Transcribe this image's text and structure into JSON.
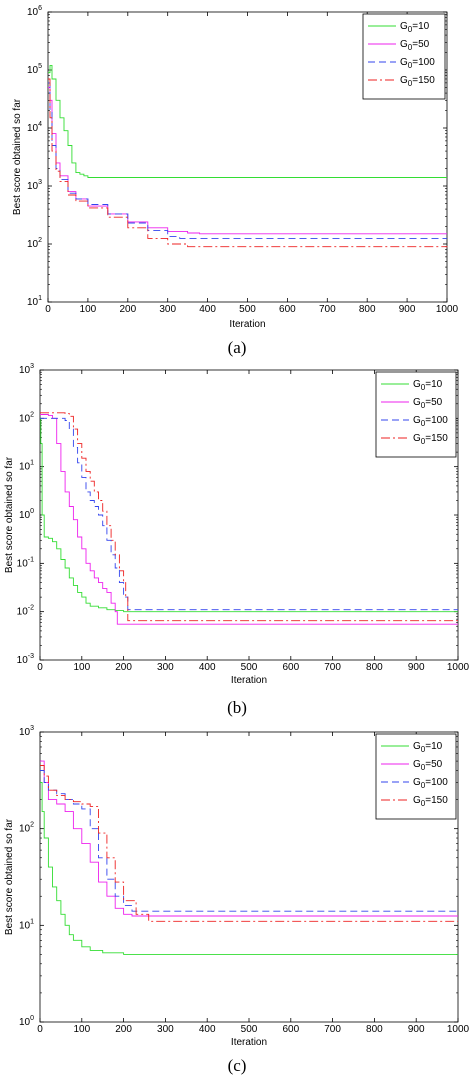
{
  "figure": {
    "captions": [
      "(a)",
      "(b)",
      "(c)"
    ]
  },
  "chart_data": [
    {
      "type": "line",
      "panel": "(a)",
      "xlabel": "Iteration",
      "ylabel": "Best score obtained so far",
      "xlim": [
        0,
        1000
      ],
      "ylim": [
        10,
        1000000
      ],
      "yscale": "log",
      "x_ticks": [
        0,
        100,
        200,
        300,
        400,
        500,
        600,
        700,
        800,
        900,
        1000
      ],
      "y_ticks": [
        {
          "base": "10",
          "exp": "1",
          "v": 10
        },
        {
          "base": "10",
          "exp": "2",
          "v": 100
        },
        {
          "base": "10",
          "exp": "3",
          "v": 1000
        },
        {
          "base": "10",
          "exp": "4",
          "v": 10000
        },
        {
          "base": "10",
          "exp": "5",
          "v": 100000
        },
        {
          "base": "10",
          "exp": "6",
          "v": 1000000
        }
      ],
      "grid": false,
      "legend_position": "top-right",
      "series": [
        {
          "name_main": "G",
          "name_sub": "0",
          "name_rest": "=10",
          "color": "#33dd33",
          "dash": "solid",
          "x": [
            0,
            5,
            10,
            20,
            30,
            40,
            50,
            60,
            70,
            80,
            90,
            100,
            1000
          ],
          "y": [
            90000,
            120000,
            70000,
            30000,
            15000,
            9000,
            5000,
            2500,
            1700,
            1600,
            1500,
            1400,
            1400
          ]
        },
        {
          "name_main": "G",
          "name_sub": "0",
          "name_rest": "=50",
          "color": "#ee22ee",
          "dash": "solid",
          "x": [
            0,
            5,
            10,
            20,
            30,
            50,
            70,
            100,
            150,
            200,
            250,
            300,
            350,
            380,
            1000
          ],
          "y": [
            50000,
            30000,
            8000,
            2500,
            1500,
            800,
            600,
            450,
            330,
            240,
            190,
            165,
            155,
            150,
            150
          ]
        },
        {
          "name_main": "G",
          "name_sub": "0",
          "name_rest": "=100",
          "color": "#3344ee",
          "dash": "dashed",
          "x": [
            0,
            5,
            10,
            20,
            30,
            50,
            70,
            100,
            150,
            200,
            250,
            300,
            330,
            1000
          ],
          "y": [
            60000,
            20000,
            5000,
            2000,
            1300,
            750,
            600,
            480,
            330,
            230,
            170,
            135,
            125,
            125
          ]
        },
        {
          "name_main": "G",
          "name_sub": "0",
          "name_rest": "=150",
          "color": "#ee2222",
          "dash": "dashdot",
          "x": [
            0,
            5,
            10,
            20,
            30,
            50,
            70,
            100,
            150,
            200,
            250,
            300,
            350,
            1000
          ],
          "y": [
            70000,
            15000,
            4000,
            1800,
            1200,
            700,
            550,
            420,
            290,
            190,
            125,
            100,
            90,
            88
          ]
        }
      ]
    },
    {
      "type": "line",
      "panel": "(b)",
      "xlabel": "Iteration",
      "ylabel": "Best score obtained so far",
      "xlim": [
        0,
        1000
      ],
      "ylim": [
        0.001,
        1000
      ],
      "yscale": "log",
      "x_ticks": [
        0,
        100,
        200,
        300,
        400,
        500,
        600,
        700,
        800,
        900,
        1000
      ],
      "y_ticks": [
        {
          "base": "10",
          "exp": "-3",
          "v": 0.001
        },
        {
          "base": "10",
          "exp": "-2",
          "v": 0.01
        },
        {
          "base": "10",
          "exp": "-1",
          "v": 0.1
        },
        {
          "base": "10",
          "exp": "0",
          "v": 1
        },
        {
          "base": "10",
          "exp": "1",
          "v": 10
        },
        {
          "base": "10",
          "exp": "2",
          "v": 100
        },
        {
          "base": "10",
          "exp": "3",
          "v": 1000
        }
      ],
      "grid": false,
      "legend_position": "top-right",
      "series": [
        {
          "name_main": "G",
          "name_sub": "0",
          "name_rest": "=10",
          "color": "#33dd33",
          "dash": "solid",
          "x": [
            0,
            2,
            5,
            10,
            20,
            30,
            40,
            50,
            60,
            70,
            80,
            90,
            100,
            110,
            120,
            140,
            160,
            180,
            200,
            1000
          ],
          "y": [
            100,
            30,
            1.0,
            0.35,
            0.33,
            0.28,
            0.2,
            0.12,
            0.08,
            0.05,
            0.035,
            0.025,
            0.02,
            0.015,
            0.013,
            0.012,
            0.011,
            0.0105,
            0.01,
            0.01
          ]
        },
        {
          "name_main": "G",
          "name_sub": "0",
          "name_rest": "=50",
          "color": "#ee22ee",
          "dash": "solid",
          "x": [
            0,
            10,
            20,
            30,
            40,
            50,
            60,
            70,
            80,
            90,
            100,
            110,
            120,
            130,
            140,
            150,
            160,
            170,
            180,
            185,
            1000
          ],
          "y": [
            120,
            120,
            115,
            100,
            30,
            8,
            3,
            1.5,
            0.8,
            0.35,
            0.2,
            0.1,
            0.07,
            0.05,
            0.04,
            0.03,
            0.025,
            0.015,
            0.01,
            0.0055,
            0.0055
          ]
        },
        {
          "name_main": "G",
          "name_sub": "0",
          "name_rest": "=100",
          "color": "#3344ee",
          "dash": "dashed",
          "x": [
            0,
            20,
            40,
            50,
            60,
            70,
            80,
            90,
            100,
            110,
            120,
            130,
            140,
            150,
            160,
            170,
            180,
            190,
            200,
            210,
            1000
          ],
          "y": [
            100,
            100,
            100,
            100,
            90,
            60,
            25,
            12,
            6,
            3,
            2,
            1.5,
            1.0,
            0.6,
            0.3,
            0.15,
            0.08,
            0.04,
            0.02,
            0.011,
            0.011
          ]
        },
        {
          "name_main": "G",
          "name_sub": "0",
          "name_rest": "=150",
          "color": "#ee2222",
          "dash": "dashdot",
          "x": [
            0,
            20,
            40,
            60,
            70,
            80,
            90,
            100,
            110,
            120,
            130,
            140,
            150,
            160,
            170,
            180,
            190,
            200,
            205,
            210,
            1000
          ],
          "y": [
            130,
            130,
            130,
            125,
            110,
            60,
            30,
            15,
            8,
            5,
            3,
            2,
            1.2,
            0.6,
            0.3,
            0.15,
            0.07,
            0.04,
            0.02,
            0.0065,
            0.0065
          ]
        }
      ]
    },
    {
      "type": "line",
      "panel": "(c)",
      "xlabel": "Iteration",
      "ylabel": "Best score obtained so far",
      "xlim": [
        0,
        1000
      ],
      "ylim": [
        1,
        1000
      ],
      "yscale": "log",
      "x_ticks": [
        0,
        100,
        200,
        300,
        400,
        500,
        600,
        700,
        800,
        900,
        1000
      ],
      "y_ticks": [
        {
          "base": "10",
          "exp": "0",
          "v": 1
        },
        {
          "base": "10",
          "exp": "1",
          "v": 10
        },
        {
          "base": "10",
          "exp": "2",
          "v": 100
        },
        {
          "base": "10",
          "exp": "3",
          "v": 1000
        }
      ],
      "grid": false,
      "legend_position": "top-right",
      "series": [
        {
          "name_main": "G",
          "name_sub": "0",
          "name_rest": "=10",
          "color": "#33dd33",
          "dash": "solid",
          "x": [
            0,
            5,
            10,
            20,
            30,
            40,
            50,
            60,
            70,
            80,
            100,
            120,
            150,
            200,
            1000
          ],
          "y": [
            300,
            150,
            80,
            40,
            25,
            18,
            13,
            10,
            8,
            7,
            6,
            5.5,
            5.2,
            5.0,
            5.0
          ]
        },
        {
          "name_main": "G",
          "name_sub": "0",
          "name_rest": "=50",
          "color": "#ee22ee",
          "dash": "solid",
          "x": [
            0,
            10,
            20,
            40,
            60,
            80,
            100,
            120,
            140,
            160,
            180,
            200,
            220,
            1000
          ],
          "y": [
            500,
            300,
            200,
            180,
            150,
            100,
            70,
            45,
            28,
            20,
            15,
            13,
            12.5,
            12.5
          ]
        },
        {
          "name_main": "G",
          "name_sub": "0",
          "name_rest": "=100",
          "color": "#3344ee",
          "dash": "dashed",
          "x": [
            0,
            10,
            20,
            40,
            60,
            80,
            100,
            120,
            140,
            160,
            180,
            200,
            220,
            1000
          ],
          "y": [
            400,
            300,
            250,
            230,
            200,
            180,
            160,
            100,
            50,
            30,
            20,
            16,
            14,
            14
          ]
        },
        {
          "name_main": "G",
          "name_sub": "0",
          "name_rest": "=150",
          "color": "#ee2222",
          "dash": "dashdot",
          "x": [
            0,
            10,
            20,
            40,
            60,
            80,
            100,
            120,
            140,
            160,
            180,
            200,
            230,
            260,
            1000
          ],
          "y": [
            450,
            350,
            250,
            220,
            200,
            190,
            180,
            170,
            90,
            50,
            28,
            18,
            13,
            11,
            11
          ]
        }
      ]
    }
  ]
}
